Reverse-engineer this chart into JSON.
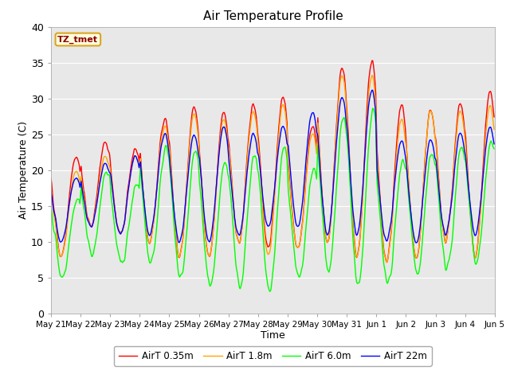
{
  "title": "Air Temperature Profile",
  "xlabel": "Time",
  "ylabel": "Air Temperature (C)",
  "ylim": [
    0,
    40
  ],
  "annotation": "TZ_tmet",
  "plot_bg_color": "#e8e8e8",
  "legend_labels": [
    "AirT 0.35m",
    "AirT 1.8m",
    "AirT 6.0m",
    "AirT 22m"
  ],
  "line_colors": [
    "red",
    "orange",
    "lime",
    "blue"
  ],
  "xtick_labels": [
    "May 21",
    "May 22",
    "May 23",
    "May 24",
    "May 25",
    "May 26",
    "May 27",
    "May 28",
    "May 29",
    "May 30",
    "May 31",
    "Jun 1",
    "Jun 2",
    "Jun 3",
    "Jun 4",
    "Jun 5"
  ],
  "n_days": 15,
  "samples_per_day": 48,
  "seed": 7
}
